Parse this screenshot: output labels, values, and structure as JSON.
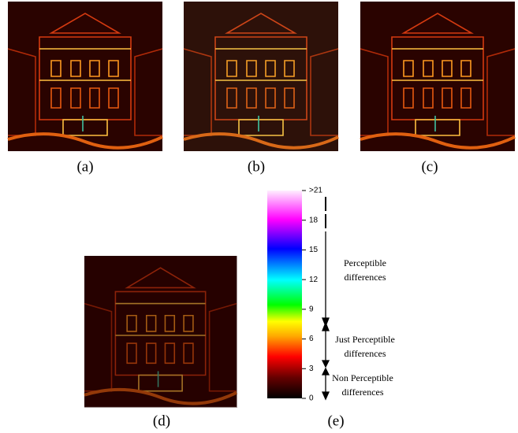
{
  "panels": [
    {
      "label": "(a)"
    },
    {
      "label": "(b)"
    },
    {
      "label": "(c)"
    },
    {
      "label": "(d)"
    },
    {
      "label": "(e)"
    }
  ],
  "colorbar": {
    "range": [
      0,
      21
    ],
    "ticks": [
      0,
      3,
      6,
      9,
      12,
      15,
      18,
      {
        "value": 21,
        "label": ">21"
      }
    ]
  },
  "annotations": {
    "perceptible": [
      "Perceptible",
      "differences"
    ],
    "just_perceptible": [
      "Just Perceptible",
      "differences"
    ],
    "non_perceptible": [
      "Non Perceptible",
      "differences"
    ]
  }
}
